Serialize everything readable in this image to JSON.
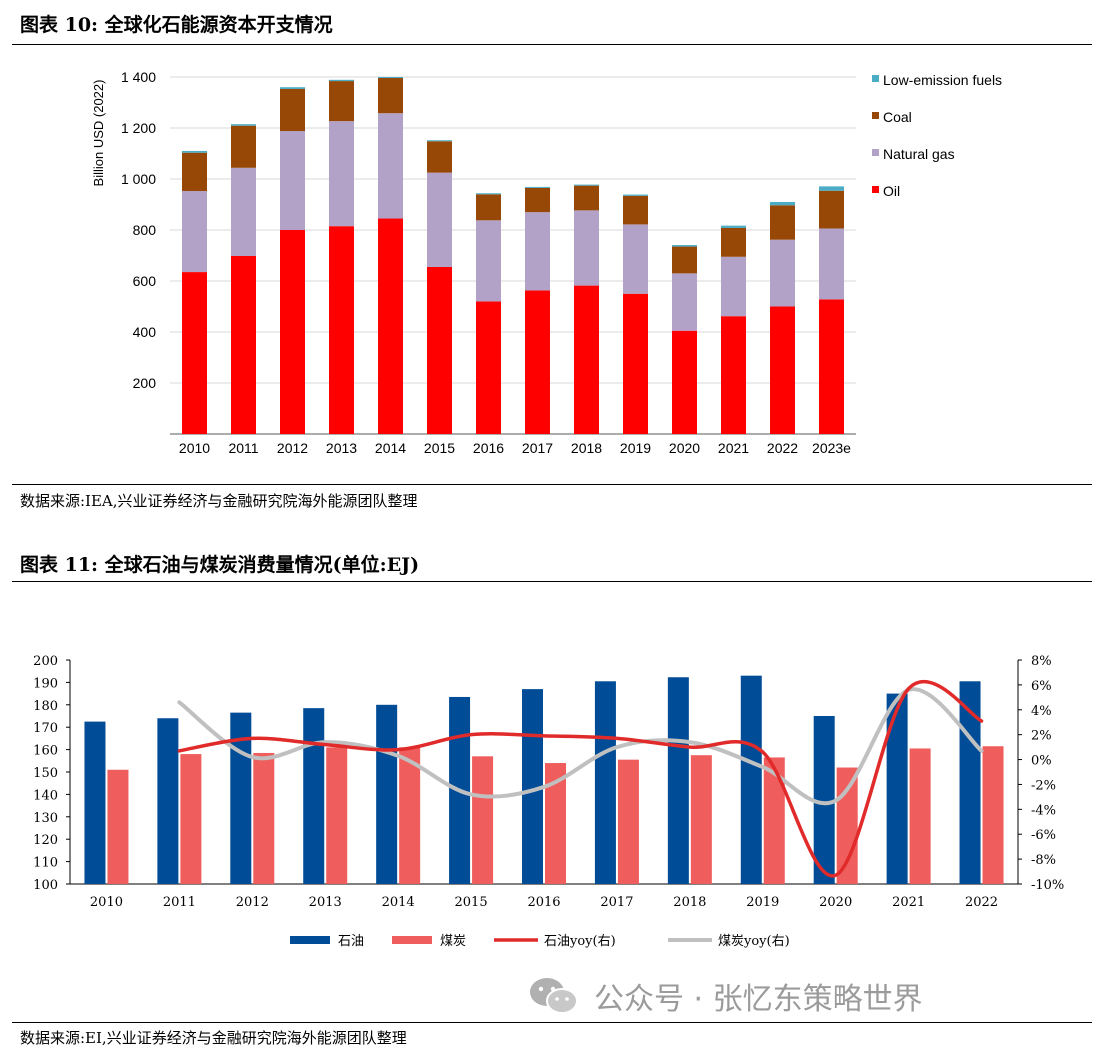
{
  "figure10": {
    "title": "图表 10:  全球化石能源资本开支情况",
    "source": "数据来源:IEA,兴业证券经济与金融研究院海外能源团队整理"
  },
  "figure11": {
    "title": "图表 11:  全球石油与煤炭消费量情况(单位:EJ)",
    "source": "数据来源:EI,兴业证券经济与金融研究院海外能源团队整理"
  },
  "watermark": {
    "text": "公众号 · 张忆东策略世界"
  },
  "colors": {
    "oil": "#ff0000",
    "gas": "#b3a2c7",
    "coal": "#974806",
    "lowem": "#4bacc6",
    "petro_bar": "#004c97",
    "coal_bar": "#ef5d5d",
    "petro_line": "#e12a2a",
    "coal_line": "#c0c0c0"
  },
  "chart_data": [
    {
      "type": "bar",
      "stacked": true,
      "title": "全球化石能源资本开支情况",
      "ylabel": "Billion USD (2022)",
      "ylim": [
        0,
        1400
      ],
      "yticks": [
        "200",
        "400",
        "600",
        "800",
        "1 000",
        "1 200",
        "1 400"
      ],
      "categories": [
        "2010",
        "2011",
        "2012",
        "2013",
        "2014",
        "2015",
        "2016",
        "2017",
        "2018",
        "2019",
        "2020",
        "2021",
        "2022",
        "2023e"
      ],
      "series": [
        {
          "name": "Oil",
          "values": [
            635,
            698,
            800,
            815,
            845,
            655,
            520,
            563,
            582,
            550,
            405,
            462,
            500,
            528
          ]
        },
        {
          "name": "Natural gas",
          "values": [
            318,
            346,
            388,
            412,
            413,
            370,
            318,
            307,
            295,
            272,
            225,
            233,
            262,
            278
          ]
        },
        {
          "name": "Coal",
          "values": [
            150,
            165,
            165,
            157,
            138,
            123,
            102,
            95,
            97,
            112,
            105,
            113,
            135,
            148
          ]
        },
        {
          "name": "Low-emission fuels",
          "values": [
            7,
            6,
            7,
            5,
            4,
            4,
            4,
            4,
            4,
            5,
            6,
            9,
            13,
            17
          ]
        }
      ],
      "legend": [
        "Low-emission fuels",
        "Coal",
        "Natural gas",
        "Oil"
      ],
      "legend_position": "right"
    },
    {
      "type": "bar+line",
      "title": "全球石油与煤炭消费量情况(单位:EJ)",
      "categories": [
        "2010",
        "2011",
        "2012",
        "2013",
        "2014",
        "2015",
        "2016",
        "2017",
        "2018",
        "2019",
        "2020",
        "2021",
        "2022"
      ],
      "ylim_left": [
        100,
        200
      ],
      "yticks_left": [
        "100",
        "110",
        "120",
        "130",
        "140",
        "150",
        "160",
        "170",
        "180",
        "190",
        "200"
      ],
      "ylim_right": [
        -10,
        8
      ],
      "yticks_right": [
        "-10%",
        "-8%",
        "-6%",
        "-4%",
        "-2%",
        "0%",
        "2%",
        "4%",
        "6%",
        "8%"
      ],
      "series": [
        {
          "name": "石油",
          "axis": "left",
          "kind": "bar",
          "values": [
            172.5,
            174,
            176.5,
            178.5,
            180,
            183.5,
            187,
            190.5,
            192.3,
            193,
            175,
            185,
            190.5
          ]
        },
        {
          "name": "煤炭",
          "axis": "left",
          "kind": "bar",
          "values": [
            151,
            158,
            158.5,
            161,
            161,
            157,
            154,
            155.5,
            157.5,
            156.5,
            152,
            160.5,
            161.5
          ]
        },
        {
          "name": "石油yoy(右)",
          "axis": "right",
          "kind": "line",
          "values": [
            null,
            0.7,
            1.7,
            1.2,
            0.8,
            2.0,
            1.9,
            1.7,
            1.0,
            0.6,
            -9.3,
            5.7,
            3.1
          ]
        },
        {
          "name": "煤炭yoy(右)",
          "axis": "right",
          "kind": "line",
          "values": [
            null,
            4.6,
            0.2,
            1.4,
            0.3,
            -2.8,
            -2.2,
            1.0,
            1.4,
            -0.6,
            -3.3,
            5.6,
            0.7
          ]
        }
      ],
      "legend": [
        "石油",
        "煤炭",
        "石油yoy(右)",
        "煤炭yoy(右)"
      ],
      "legend_position": "bottom"
    }
  ]
}
